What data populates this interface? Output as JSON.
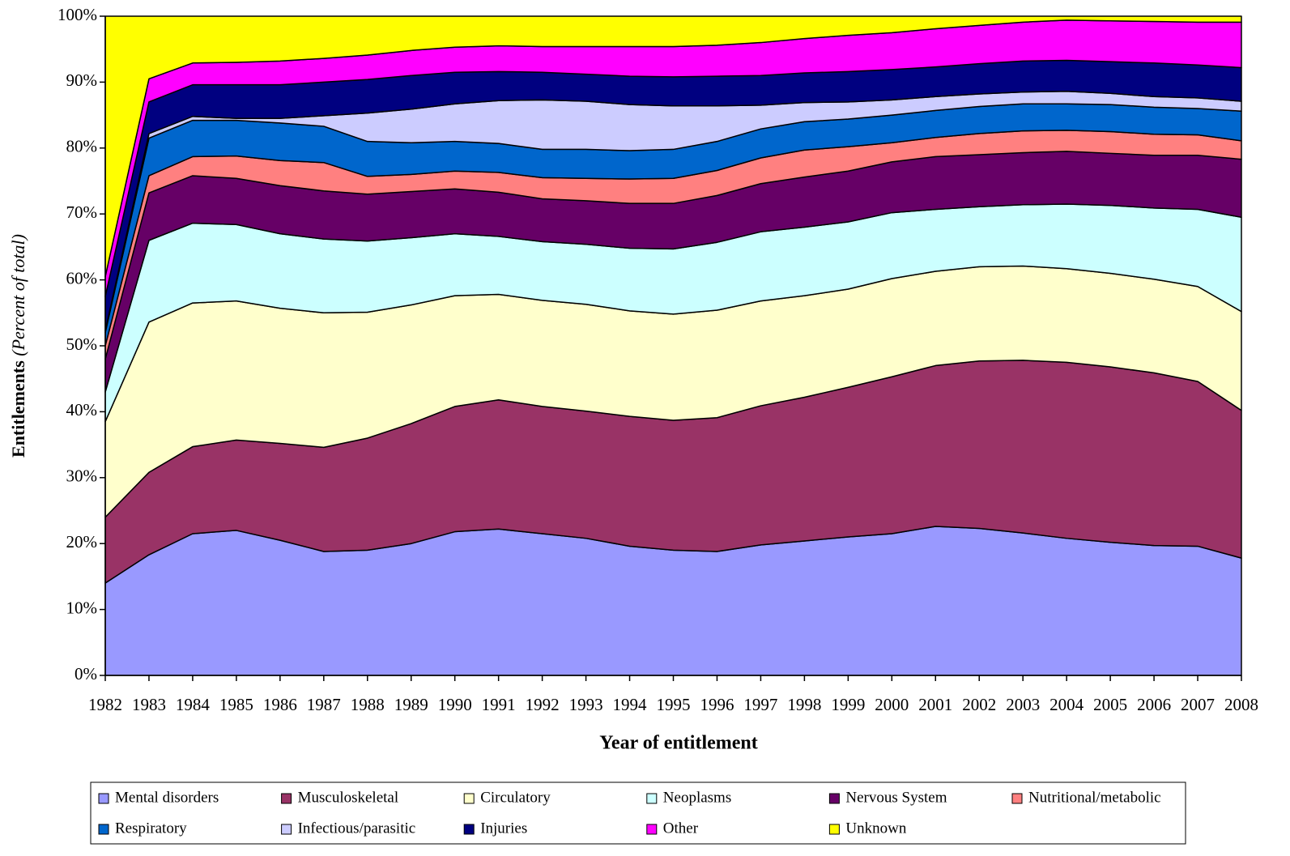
{
  "chart_data": {
    "type": "stacked_area",
    "xlabel": "Year of entitlement",
    "ylabel": "Entitlements",
    "ylabel_note": "(Percent of total)",
    "x": [
      1982,
      1983,
      1984,
      1985,
      1986,
      1987,
      1988,
      1989,
      1990,
      1991,
      1992,
      1993,
      1994,
      1995,
      1996,
      1997,
      1998,
      1999,
      2000,
      2001,
      2002,
      2003,
      2004,
      2005,
      2006,
      2007,
      2008
    ],
    "ylim": [
      0,
      100
    ],
    "yticks": [
      {
        "value": 0,
        "label": "0%"
      },
      {
        "value": 10,
        "label": "10%"
      },
      {
        "value": 20,
        "label": "20%"
      },
      {
        "value": 30,
        "label": "30%"
      },
      {
        "value": 40,
        "label": "40%"
      },
      {
        "value": 50,
        "label": "50%"
      },
      {
        "value": 60,
        "label": "60%"
      },
      {
        "value": 70,
        "label": "70%"
      },
      {
        "value": 80,
        "label": "80%"
      },
      {
        "value": 90,
        "label": "90%"
      },
      {
        "value": 100,
        "label": "100%"
      }
    ],
    "series": [
      {
        "name": "Mental disorders",
        "color": "#9999ff",
        "values": [
          14,
          18.3,
          21.5,
          22,
          20.5,
          18.8,
          19,
          20,
          21.8,
          22.2,
          21.5,
          20.8,
          19.6,
          19,
          18.8,
          19.8,
          20.4,
          21,
          21.5,
          22.6,
          22.3,
          21.6,
          20.8,
          20.2,
          19.7,
          19.6,
          17.8
        ]
      },
      {
        "name": "Musculoskeletal",
        "color": "#993366",
        "values": [
          10,
          12.5,
          13.2,
          13.7,
          14.7,
          15.8,
          17,
          18.2,
          19,
          19.6,
          19.3,
          19.3,
          19.7,
          19.7,
          20.3,
          21.1,
          21.8,
          22.7,
          23.8,
          24.4,
          25.4,
          26.2,
          26.7,
          26.6,
          26.2,
          25,
          22.4
        ]
      },
      {
        "name": "Circulatory",
        "color": "#ffffcc",
        "values": [
          14.5,
          22.8,
          21.8,
          21.1,
          20.5,
          20.4,
          19.1,
          18,
          16.8,
          16,
          16.1,
          16.2,
          16,
          16.1,
          16.3,
          15.9,
          15.4,
          14.9,
          14.9,
          14.3,
          14.3,
          14.3,
          14.2,
          14.2,
          14.2,
          14.4,
          15
        ]
      },
      {
        "name": "Neoplasms",
        "color": "#ccffff",
        "values": [
          4.5,
          12.4,
          12.1,
          11.6,
          11.3,
          11.2,
          10.8,
          10.2,
          9.4,
          8.8,
          8.9,
          9.1,
          9.5,
          9.9,
          10.3,
          10.5,
          10.4,
          10.2,
          10,
          9.4,
          9.1,
          9.3,
          9.8,
          10.3,
          10.8,
          11.7,
          14.3
        ]
      },
      {
        "name": "Nervous System",
        "color": "#660066",
        "values": [
          5,
          7.2,
          7.2,
          7,
          7.3,
          7.3,
          7.1,
          7,
          6.8,
          6.7,
          6.5,
          6.6,
          6.8,
          6.9,
          7.1,
          7.3,
          7.6,
          7.7,
          7.7,
          8,
          7.9,
          7.9,
          8,
          7.9,
          8,
          8.2,
          8.8
        ]
      },
      {
        "name": "Nutritional/metabolic",
        "color": "#ff8080",
        "values": [
          2,
          2.6,
          2.9,
          3.4,
          3.8,
          4.3,
          2.7,
          2.6,
          2.7,
          3,
          3.2,
          3.4,
          3.7,
          3.8,
          3.8,
          3.9,
          4.1,
          3.7,
          2.9,
          2.9,
          3.2,
          3.3,
          3.2,
          3.3,
          3.2,
          3.1,
          2.8
        ]
      },
      {
        "name": "Respiratory",
        "color": "#0066cc",
        "values": [
          2,
          5.7,
          5.5,
          5.4,
          5.7,
          5.5,
          5.3,
          4.8,
          4.5,
          4.4,
          4.3,
          4.4,
          4.3,
          4.4,
          4.4,
          4.4,
          4.3,
          4.2,
          4.2,
          4.1,
          4.1,
          4.1,
          4,
          4.1,
          4.1,
          4,
          4.5
        ]
      },
      {
        "name": "Infectious/parasitic",
        "color": "#ccccff",
        "values": [
          0.3,
          0.7,
          0.6,
          0.3,
          0.7,
          1.6,
          4.3,
          5.1,
          5.7,
          6.5,
          7.5,
          7.3,
          7,
          6.6,
          5.4,
          3.6,
          2.9,
          2.6,
          2.3,
          2.1,
          1.9,
          1.8,
          1.9,
          1.7,
          1.6,
          1.6,
          1.5
        ]
      },
      {
        "name": "Injuries",
        "color": "#000080",
        "values": [
          5.2,
          4.8,
          4.8,
          5.1,
          5.1,
          5.1,
          5.1,
          5.1,
          4.8,
          4.4,
          4.2,
          4.1,
          4.3,
          4.4,
          4.5,
          4.5,
          4.5,
          4.6,
          4.6,
          4.5,
          4.6,
          4.7,
          4.7,
          4.8,
          5.1,
          5,
          5.1
        ]
      },
      {
        "name": "Other",
        "color": "#ff00ff",
        "values": [
          3,
          3.5,
          3.3,
          3.4,
          3.6,
          3.6,
          3.7,
          3.8,
          3.8,
          3.9,
          3.9,
          4.2,
          4.5,
          4.6,
          4.7,
          5,
          5.2,
          5.5,
          5.6,
          5.8,
          5.8,
          5.9,
          6.1,
          6.2,
          6.3,
          6.5,
          6.9
        ]
      },
      {
        "name": "Unknown",
        "color": "#ffff00",
        "values": [
          39.5,
          9.5,
          7.1,
          7,
          6.8,
          6.4,
          5.9,
          5.2,
          4.7,
          4.5,
          4.6,
          4.6,
          4.6,
          4.6,
          4.4,
          4,
          3.4,
          2.9,
          2.5,
          1.9,
          1.4,
          0.9,
          0.6,
          0.7,
          0.8,
          0.9,
          0.9
        ]
      }
    ]
  }
}
